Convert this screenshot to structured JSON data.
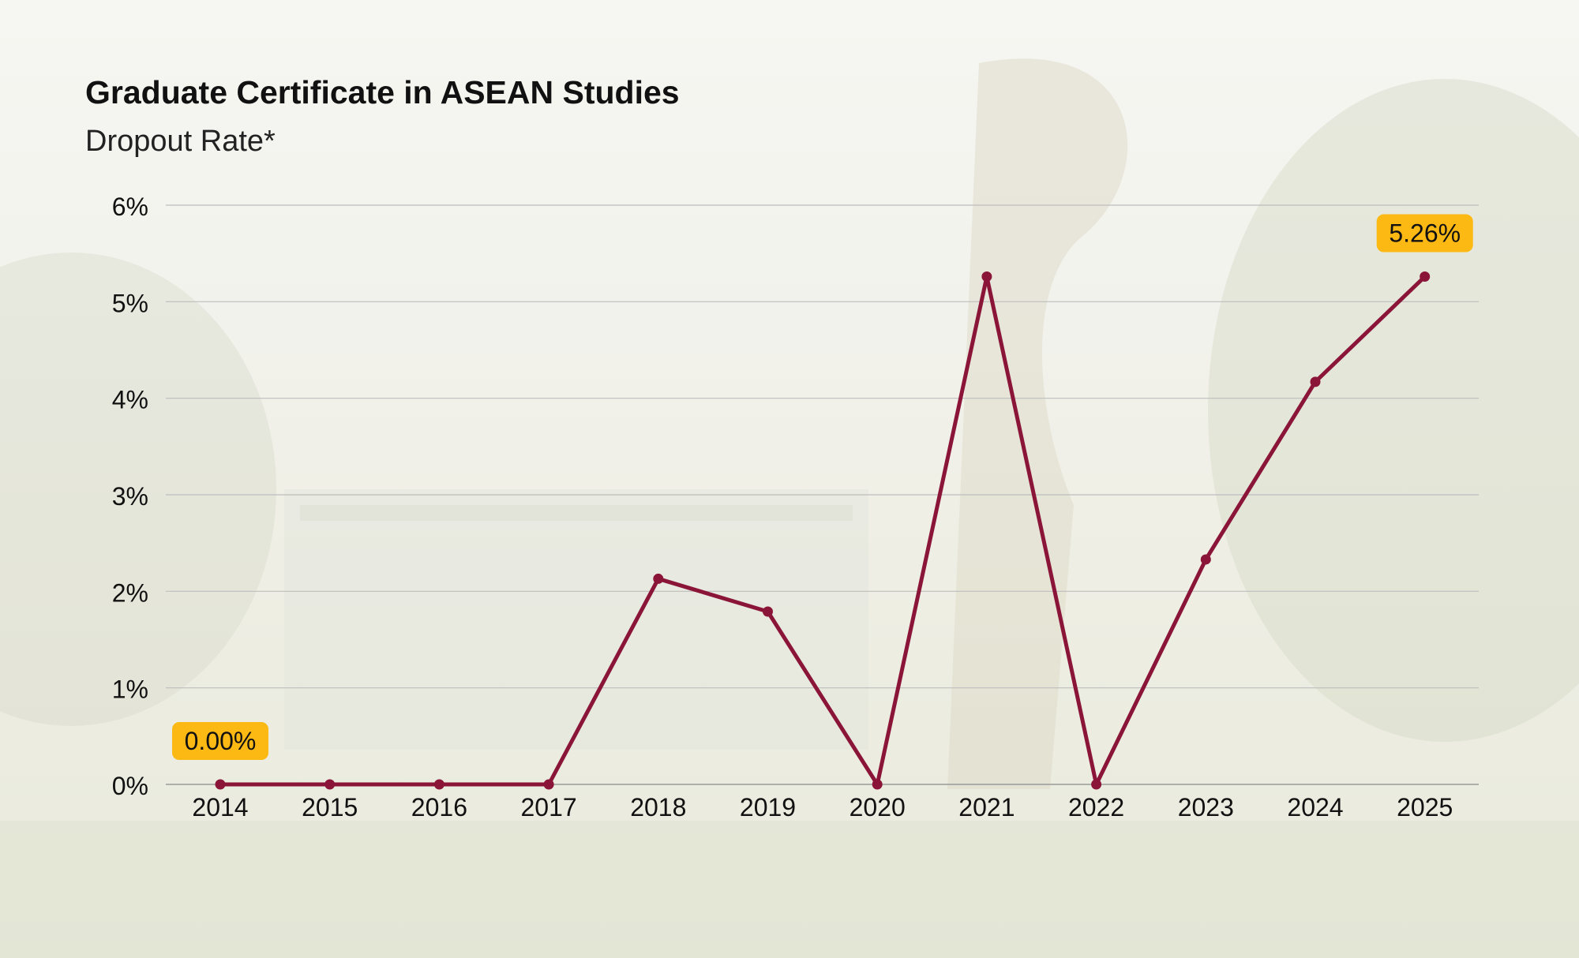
{
  "title": "Graduate Certificate in ASEAN Studies",
  "subtitle": "Dropout Rate*",
  "colors": {
    "line": "#8a1538",
    "label_bg": "#fdb913",
    "grid": "#bdbdbd",
    "text": "#111111"
  },
  "chart_data": {
    "type": "line",
    "title": "Graduate Certificate in ASEAN Studies",
    "subtitle": "Dropout Rate*",
    "xlabel": "",
    "ylabel": "",
    "categories": [
      "2014",
      "2015",
      "2016",
      "2017",
      "2018",
      "2019",
      "2020",
      "2021",
      "2022",
      "2023",
      "2024",
      "2025"
    ],
    "values": [
      0,
      0,
      0,
      0,
      2.13,
      1.79,
      0,
      5.26,
      0,
      2.33,
      4.17,
      5.26
    ],
    "yticks": [
      "0%",
      "1%",
      "2%",
      "3%",
      "4%",
      "5%",
      "6%"
    ],
    "ylim": [
      0,
      6
    ],
    "grid": true,
    "legend": "none",
    "data_labels": [
      {
        "category": "2014",
        "text": "0.00%"
      },
      {
        "category": "2025",
        "text": "5.26%"
      }
    ]
  }
}
